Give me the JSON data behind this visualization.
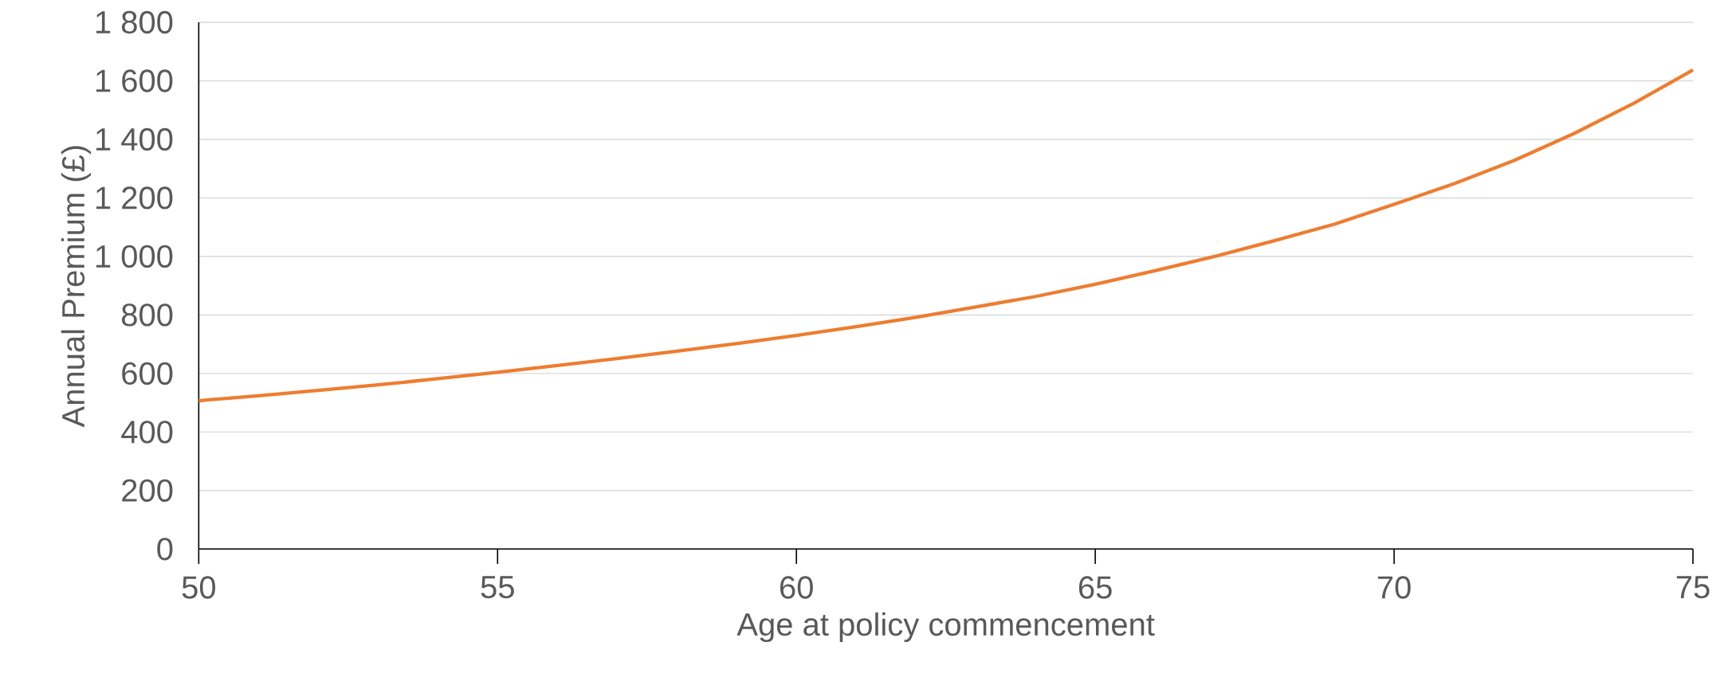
{
  "chart_data": {
    "type": "line",
    "xlabel": "Age at policy commencement",
    "ylabel": "Annual Premium (£)",
    "x": [
      50,
      51,
      52,
      53,
      54,
      55,
      56,
      57,
      58,
      59,
      60,
      61,
      62,
      63,
      64,
      65,
      66,
      67,
      68,
      69,
      70,
      71,
      72,
      73,
      74,
      75
    ],
    "values": [
      507,
      524,
      542,
      561,
      582,
      604,
      627,
      651,
      676,
      702,
      730,
      760,
      792,
      827,
      863,
      905,
      951,
      1000,
      1054,
      1110,
      1178,
      1248,
      1327,
      1419,
      1522,
      1637
    ],
    "color": "#ed7d31",
    "xlim": [
      50,
      75
    ],
    "ylim": [
      0,
      1800
    ],
    "xticks": [
      50,
      55,
      60,
      65,
      70,
      75
    ],
    "yticks": [
      0,
      200,
      400,
      600,
      800,
      {
        "value": 1000,
        "label": "1 000"
      },
      {
        "value": 1200,
        "label": "1 200"
      },
      {
        "value": 1400,
        "label": "1 400"
      },
      {
        "value": 1600,
        "label": "1 600"
      },
      {
        "value": 1800,
        "label": "1 800"
      }
    ],
    "grid": "y"
  }
}
